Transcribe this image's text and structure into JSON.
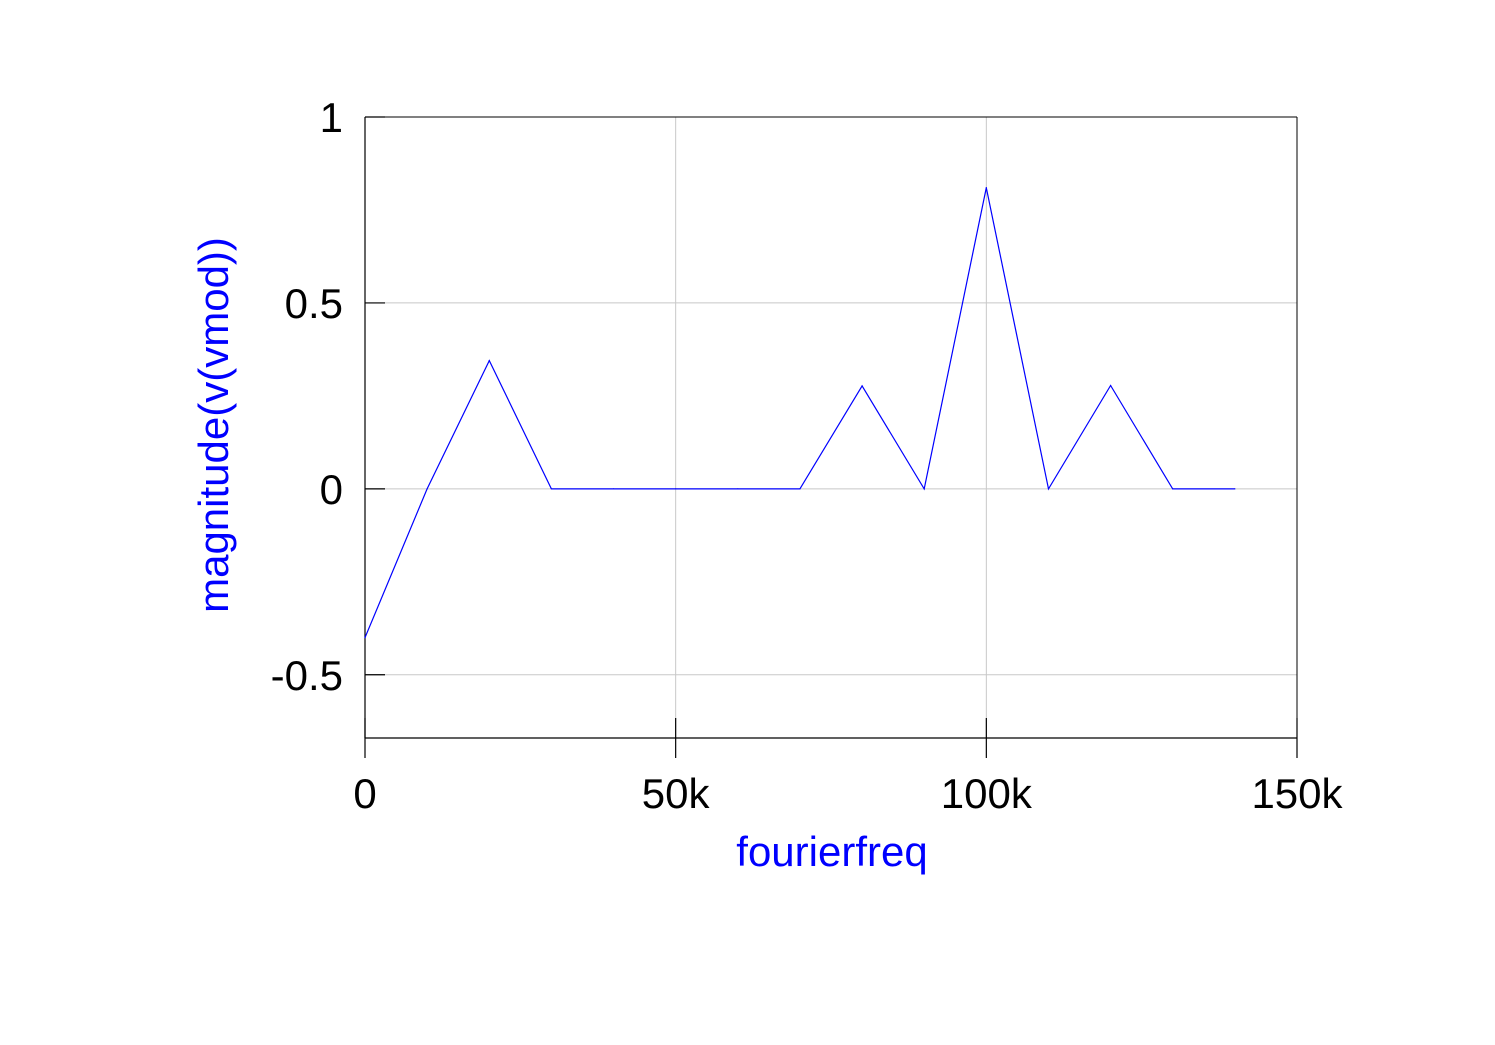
{
  "chart_data": {
    "type": "line",
    "xlabel": "fourierfreq",
    "ylabel": "magnitude(v(vmod))",
    "xlim": [
      0,
      150000
    ],
    "ylim": [
      -0.67,
      1.0
    ],
    "x_ticks": [
      {
        "value": 0,
        "label": "0"
      },
      {
        "value": 50000,
        "label": "50k"
      },
      {
        "value": 100000,
        "label": "100k"
      },
      {
        "value": 150000,
        "label": "150k"
      }
    ],
    "y_ticks": [
      {
        "value": -0.5,
        "label": "-0.5"
      },
      {
        "value": 0,
        "label": "0"
      },
      {
        "value": 0.5,
        "label": "0.5"
      },
      {
        "value": 1,
        "label": "1"
      }
    ],
    "grid": true,
    "series": [
      {
        "color": "#0000ff",
        "x": [
          0,
          10000,
          20000,
          30000,
          40000,
          50000,
          60000,
          70000,
          80000,
          90000,
          100000,
          110000,
          120000,
          130000,
          140000
        ],
        "values": [
          -0.4,
          0.0,
          0.345,
          0.0,
          0.0,
          0.0,
          0.0,
          0.0,
          0.277,
          0.0,
          0.81,
          0.0,
          0.278,
          0.0,
          0.0
        ]
      }
    ],
    "colors": {
      "series": "#0000ff",
      "grid": "#c8c8c8",
      "axis": "#000000",
      "xlabel": "#0000ff",
      "ylabel": "#0000ff"
    }
  }
}
